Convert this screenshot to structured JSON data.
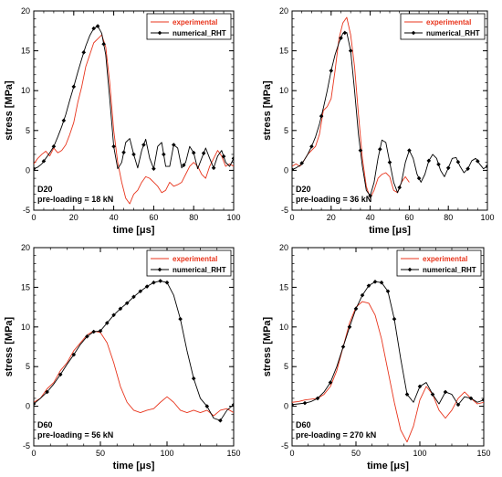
{
  "chart_data": [
    {
      "type": "line",
      "xlabel": "time [μs]",
      "ylabel": "stress [MPa]",
      "xlim": [
        0,
        100
      ],
      "ylim": [
        -5,
        20
      ],
      "xticks": [
        "0",
        "20",
        "40",
        "60",
        "80",
        "100"
      ],
      "yticks": [
        "-5",
        "0",
        "5",
        "10",
        "15",
        "20"
      ],
      "legend_position": "top-right",
      "annotation": [
        "D20",
        "pre-loading = 18 kN"
      ],
      "series": [
        {
          "name": "experimental",
          "color": "#e8341c",
          "x": [
            0,
            2,
            4,
            6,
            8,
            10,
            12,
            14,
            16,
            18,
            20,
            22,
            24,
            26,
            28,
            30,
            32,
            34,
            36,
            38,
            40,
            42,
            44,
            46,
            48,
            50,
            52,
            54,
            56,
            58,
            60,
            62,
            64,
            66,
            68,
            70,
            72,
            74,
            76,
            78,
            80,
            82,
            84,
            86,
            88,
            90,
            92,
            94,
            96,
            98,
            100
          ],
          "y": [
            0.8,
            1.5,
            2.0,
            2.4,
            1.8,
            2.8,
            2.2,
            2.5,
            3.2,
            4.5,
            6.0,
            8.5,
            10.5,
            13.0,
            14.5,
            16.0,
            16.5,
            17.0,
            15.5,
            11.0,
            5.0,
            1.0,
            -1.5,
            -3.5,
            -4.2,
            -3.0,
            -2.5,
            -1.5,
            -0.8,
            -1.0,
            -1.5,
            -2.0,
            -2.8,
            -2.5,
            -1.5,
            -2.0,
            -1.8,
            -1.5,
            -0.5,
            0.5,
            1.0,
            0.5,
            -0.5,
            -1.0,
            0.5,
            1.5,
            2.5,
            1.8,
            0.5,
            0.8,
            0.5
          ]
        },
        {
          "name": "numerical_RHT",
          "color": "#000000",
          "marker": "diamond",
          "x": [
            0,
            2,
            4,
            6,
            8,
            10,
            12,
            14,
            16,
            18,
            20,
            22,
            24,
            26,
            28,
            30,
            32,
            34,
            36,
            38,
            40,
            42,
            44,
            46,
            48,
            50,
            52,
            54,
            56,
            58,
            60,
            62,
            64,
            66,
            68,
            70,
            72,
            74,
            76,
            78,
            80,
            82,
            84,
            86,
            88,
            90,
            92,
            94,
            96,
            98,
            100
          ],
          "y": [
            0.2,
            0.4,
            0.8,
            1.5,
            2.2,
            3.0,
            4.2,
            5.5,
            7.0,
            8.8,
            10.5,
            12.3,
            14.0,
            15.6,
            16.9,
            17.8,
            18.1,
            17.2,
            14.5,
            9.0,
            3.0,
            0.2,
            1.0,
            3.5,
            4.0,
            2.0,
            0.3,
            2.5,
            3.9,
            1.5,
            0.2,
            3.0,
            3.5,
            0.5,
            0.5,
            3.2,
            2.8,
            0.3,
            1.0,
            3.0,
            2.2,
            0.2,
            1.5,
            2.8,
            1.5,
            0.3,
            1.8,
            2.5,
            1.0,
            0.5,
            1.5
          ],
          "markers_at": [
            0,
            5,
            10,
            15,
            20,
            25,
            30,
            32,
            35,
            40,
            45,
            50,
            55,
            60,
            65,
            70,
            75,
            80,
            85,
            90,
            95,
            100
          ]
        }
      ]
    },
    {
      "type": "line",
      "xlabel": "time [μs]",
      "ylabel": "stress [MPa]",
      "xlim": [
        0,
        100
      ],
      "ylim": [
        -5,
        20
      ],
      "xticks": [
        "0",
        "20",
        "40",
        "60",
        "80",
        "100"
      ],
      "yticks": [
        "-5",
        "0",
        "5",
        "10",
        "15",
        "20"
      ],
      "legend_position": "top-right",
      "annotation": [
        "D20",
        "pre-loading = 36 kN"
      ],
      "series": [
        {
          "name": "experimental",
          "color": "#e8341c",
          "x": [
            0,
            2,
            4,
            6,
            8,
            10,
            12,
            14,
            16,
            18,
            20,
            22,
            24,
            26,
            28,
            30,
            32,
            34,
            36,
            38,
            40,
            42,
            44,
            46,
            48,
            50,
            52,
            54,
            56,
            58,
            60
          ],
          "y": [
            0.5,
            0.8,
            0.5,
            1.2,
            2.0,
            2.5,
            3.0,
            4.5,
            7.5,
            8.0,
            9.0,
            12.5,
            16.5,
            18.5,
            19.2,
            17.0,
            13.0,
            7.0,
            1.5,
            -2.0,
            -3.5,
            -2.5,
            -1.0,
            -0.5,
            -0.3,
            -0.8,
            -2.5,
            -2.8,
            -1.5,
            -0.8,
            -1.5
          ]
        },
        {
          "name": "numerical_RHT",
          "color": "#000000",
          "marker": "diamond",
          "x": [
            0,
            2,
            4,
            6,
            8,
            10,
            12,
            14,
            16,
            18,
            20,
            22,
            24,
            26,
            28,
            30,
            32,
            34,
            36,
            38,
            40,
            42,
            44,
            46,
            48,
            50,
            52,
            54,
            56,
            58,
            60,
            62,
            64,
            66,
            68,
            70,
            72,
            74,
            76,
            78,
            80,
            82,
            84,
            86,
            88,
            90,
            92,
            94,
            96,
            98,
            100
          ],
          "y": [
            0.1,
            0.3,
            0.6,
            1.2,
            2.0,
            3.0,
            4.2,
            5.8,
            7.8,
            10.0,
            12.5,
            14.5,
            16.0,
            17.2,
            17.3,
            15.0,
            10.0,
            4.5,
            0.5,
            -2.5,
            -3.2,
            -1.5,
            1.5,
            3.8,
            3.5,
            1.0,
            -1.5,
            -2.8,
            -1.5,
            1.0,
            2.5,
            1.5,
            -0.5,
            -1.5,
            -0.5,
            1.2,
            2.0,
            1.5,
            0.0,
            -0.8,
            0.3,
            1.5,
            1.6,
            0.5,
            -0.3,
            0.2,
            1.2,
            1.5,
            0.8,
            0.2,
            0.5
          ],
          "markers_at": [
            0,
            5,
            10,
            15,
            20,
            25,
            27,
            30,
            35,
            40,
            45,
            50,
            55,
            60,
            65,
            70,
            75,
            80,
            85,
            90,
            95,
            100
          ]
        }
      ]
    },
    {
      "type": "line",
      "xlabel": "time [μs]",
      "ylabel": "stress [MPa]",
      "xlim": [
        0,
        150
      ],
      "ylim": [
        -5,
        20
      ],
      "xticks": [
        "0",
        "50",
        "100",
        "150"
      ],
      "yticks": [
        "-5",
        "0",
        "5",
        "10",
        "15",
        "20"
      ],
      "legend_position": "top-right",
      "annotation": [
        "D60",
        "pre-loading = 56 kN"
      ],
      "series": [
        {
          "name": "experimental",
          "color": "#e8341c",
          "x": [
            0,
            5,
            10,
            15,
            20,
            25,
            30,
            35,
            40,
            45,
            50,
            55,
            60,
            65,
            70,
            75,
            80,
            85,
            90,
            95,
            100,
            105,
            110,
            115,
            120,
            125,
            130,
            135,
            140,
            145,
            150
          ],
          "y": [
            0.5,
            1.0,
            2.2,
            3.0,
            4.5,
            5.5,
            7.0,
            8.0,
            9.0,
            9.5,
            9.3,
            8.0,
            5.5,
            2.5,
            0.5,
            -0.5,
            -0.8,
            -0.5,
            -0.3,
            0.5,
            1.2,
            0.5,
            -0.5,
            -0.8,
            -0.5,
            -0.8,
            -0.5,
            -1.2,
            -0.5,
            -0.3,
            -0.8
          ]
        },
        {
          "name": "numerical_RHT",
          "color": "#000000",
          "marker": "diamond",
          "x": [
            0,
            5,
            10,
            15,
            20,
            25,
            30,
            35,
            40,
            45,
            50,
            55,
            60,
            65,
            70,
            75,
            80,
            85,
            90,
            95,
            100,
            105,
            110,
            115,
            120,
            125,
            130,
            135,
            140,
            145,
            150
          ],
          "y": [
            0.3,
            1.0,
            1.8,
            2.8,
            4.0,
            5.3,
            6.5,
            7.8,
            8.8,
            9.4,
            9.5,
            10.5,
            11.5,
            12.3,
            13.0,
            13.8,
            14.5,
            15.1,
            15.6,
            15.8,
            15.6,
            14.0,
            11.0,
            7.0,
            3.5,
            1.0,
            0.0,
            -1.5,
            -1.8,
            -0.5,
            0.2
          ],
          "markers_at": [
            0,
            10,
            20,
            30,
            40,
            45,
            50,
            55,
            60,
            65,
            70,
            75,
            80,
            85,
            90,
            95,
            100,
            110,
            120,
            130,
            140,
            150
          ]
        }
      ]
    },
    {
      "type": "line",
      "xlabel": "time [μs]",
      "ylabel": "stress [MPa]",
      "xlim": [
        0,
        150
      ],
      "ylim": [
        -5,
        20
      ],
      "xticks": [
        "0",
        "50",
        "100",
        "150"
      ],
      "yticks": [
        "-5",
        "0",
        "5",
        "10",
        "15",
        "20"
      ],
      "legend_position": "top-right",
      "annotation": [
        "D60",
        "pre-loading = 270 kN"
      ],
      "series": [
        {
          "name": "experimental",
          "color": "#e8341c",
          "x": [
            0,
            5,
            10,
            15,
            20,
            25,
            30,
            35,
            40,
            45,
            50,
            55,
            60,
            65,
            70,
            75,
            80,
            85,
            90,
            95,
            100,
            105,
            110,
            115,
            120,
            125,
            130,
            135,
            140,
            145,
            150
          ],
          "y": [
            0.5,
            0.6,
            0.8,
            0.9,
            1.0,
            1.5,
            2.5,
            4.5,
            7.5,
            10.5,
            12.5,
            13.2,
            13.0,
            11.5,
            8.5,
            4.5,
            0.5,
            -3.0,
            -4.5,
            -2.5,
            0.8,
            2.5,
            1.5,
            -0.5,
            -1.5,
            -0.5,
            1.0,
            1.8,
            1.0,
            0.3,
            0.5
          ]
        },
        {
          "name": "numerical_RHT",
          "color": "#000000",
          "marker": "diamond",
          "x": [
            0,
            5,
            10,
            15,
            20,
            25,
            30,
            35,
            40,
            45,
            50,
            55,
            60,
            65,
            70,
            75,
            80,
            85,
            90,
            95,
            100,
            105,
            110,
            115,
            120,
            125,
            130,
            135,
            140,
            145,
            150
          ],
          "y": [
            0.2,
            0.3,
            0.4,
            0.6,
            1.0,
            1.8,
            3.0,
            5.0,
            7.5,
            10.0,
            12.3,
            14.0,
            15.2,
            15.7,
            15.6,
            14.5,
            11.0,
            6.0,
            1.5,
            0.5,
            2.5,
            3.0,
            1.5,
            0.3,
            1.8,
            1.5,
            0.2,
            1.2,
            1.0,
            0.5,
            0.8
          ],
          "markers_at": [
            0,
            10,
            20,
            30,
            40,
            45,
            50,
            55,
            60,
            65,
            70,
            75,
            80,
            90,
            100,
            110,
            120,
            130,
            140,
            150
          ]
        }
      ]
    }
  ]
}
